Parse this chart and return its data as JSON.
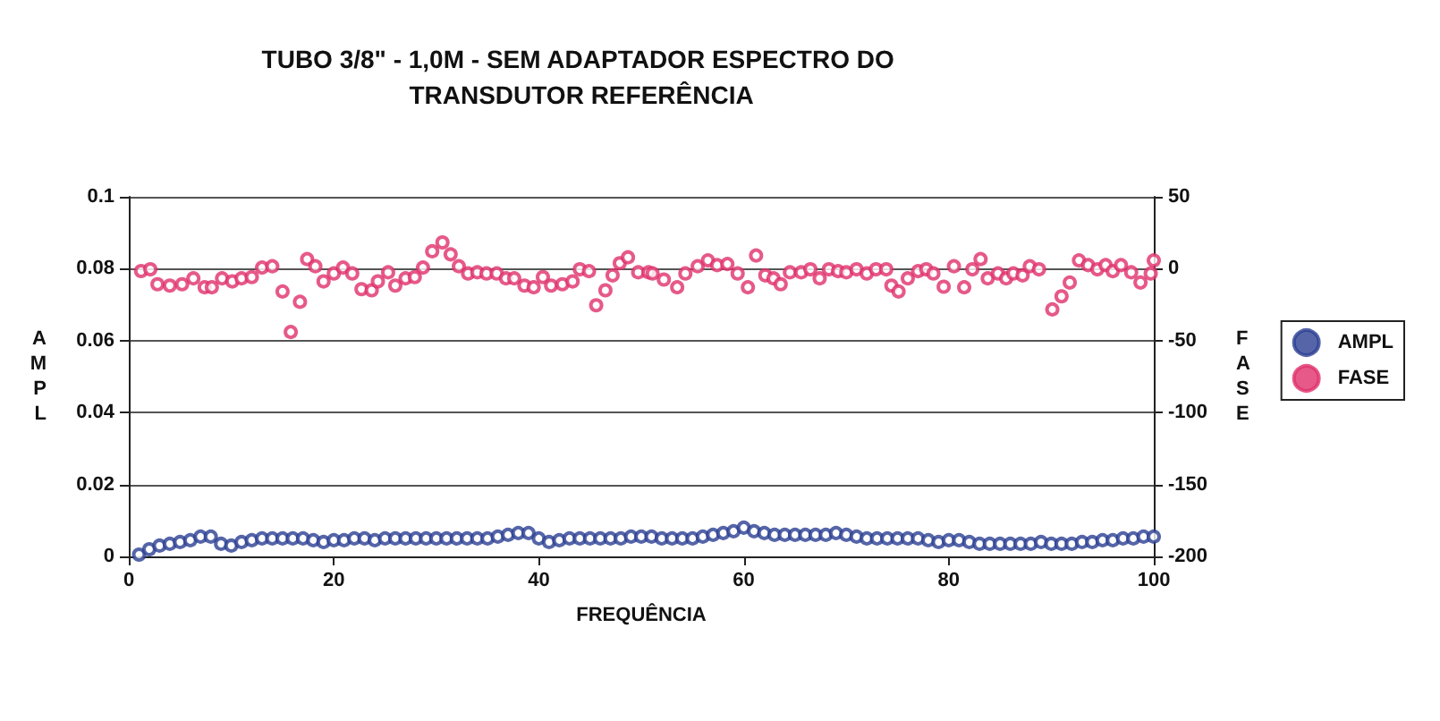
{
  "chart_data": {
    "type": "scatter",
    "title": "TUBO 3/8\" - 1,0M - SEM ADAPTADOR ESPECTRO DO TRANSDUTOR REFERÊNCIA",
    "xlabel": "FREQUÊNCIA",
    "ylabel": "AMPL",
    "y2label": "FASE",
    "xlim": [
      0,
      100
    ],
    "xticks": [
      0,
      20,
      40,
      60,
      80,
      100
    ],
    "ylim": [
      0,
      0.1
    ],
    "yticks": [
      0,
      0.02,
      0.04,
      0.06,
      0.08,
      0.1
    ],
    "y2lim": [
      -200,
      50
    ],
    "y2ticks": [
      -200,
      -150,
      -100,
      -50,
      0,
      50
    ],
    "grid": "y",
    "legend": "right",
    "marker": "circle",
    "series": [
      {
        "name": "AMPL",
        "color": "#2b3f92",
        "x": [
          1,
          2,
          3,
          4,
          5,
          6,
          7,
          8,
          9,
          10,
          11,
          12,
          13,
          14,
          15,
          16,
          17,
          18,
          19,
          20,
          21,
          22,
          23,
          24,
          25,
          26,
          27,
          28,
          29,
          30,
          31,
          32,
          33,
          34,
          35,
          36,
          37,
          38,
          39,
          40,
          41,
          42,
          43,
          44,
          45,
          46,
          47,
          48,
          49,
          50,
          51,
          52,
          53,
          54,
          55,
          56,
          57,
          58,
          59,
          60,
          61,
          62,
          63,
          64,
          65,
          66,
          67,
          68,
          69,
          70,
          71,
          72,
          73,
          74,
          75,
          76,
          77,
          78,
          79,
          80,
          81,
          82,
          83,
          84,
          85,
          86,
          87,
          88,
          89,
          90,
          91,
          92,
          93,
          94,
          95,
          96,
          97,
          98,
          99,
          100
        ],
        "values": [
          0.0005,
          0.002,
          0.003,
          0.0035,
          0.004,
          0.0045,
          0.0055,
          0.0055,
          0.0035,
          0.003,
          0.004,
          0.0045,
          0.005,
          0.005,
          0.005,
          0.005,
          0.005,
          0.0045,
          0.004,
          0.0045,
          0.0045,
          0.005,
          0.005,
          0.0045,
          0.005,
          0.005,
          0.005,
          0.005,
          0.005,
          0.005,
          0.005,
          0.005,
          0.005,
          0.005,
          0.005,
          0.0055,
          0.006,
          0.0065,
          0.0065,
          0.005,
          0.004,
          0.0045,
          0.005,
          0.005,
          0.005,
          0.005,
          0.005,
          0.005,
          0.0055,
          0.0055,
          0.0055,
          0.005,
          0.005,
          0.005,
          0.005,
          0.0055,
          0.006,
          0.0065,
          0.007,
          0.008,
          0.007,
          0.0065,
          0.006,
          0.006,
          0.006,
          0.006,
          0.006,
          0.006,
          0.0065,
          0.006,
          0.0055,
          0.005,
          0.005,
          0.005,
          0.005,
          0.005,
          0.005,
          0.0045,
          0.004,
          0.0045,
          0.0045,
          0.004,
          0.0035,
          0.0035,
          0.0035,
          0.0035,
          0.0035,
          0.0035,
          0.004,
          0.0035,
          0.0035,
          0.0035,
          0.004,
          0.004,
          0.0045,
          0.0045,
          0.005,
          0.005,
          0.0055,
          0.0055
        ]
      },
      {
        "name": "FASE",
        "color": "#e0306c",
        "axis": "y2",
        "x": [
          1.2,
          2.1,
          2.8,
          4.0,
          5.2,
          6.3,
          7.4,
          8.1,
          9.1,
          10.1,
          11.0,
          12.0,
          13.0,
          14.0,
          15.0,
          15.8,
          16.7,
          17.4,
          18.2,
          19.0,
          20.0,
          20.9,
          21.8,
          22.7,
          23.7,
          24.3,
          25.3,
          26.0,
          27.0,
          27.9,
          28.7,
          29.6,
          30.6,
          31.4,
          32.2,
          33.1,
          34.0,
          34.9,
          35.9,
          36.8,
          37.6,
          38.6,
          39.5,
          40.4,
          41.2,
          42.3,
          43.3,
          44.0,
          44.9,
          45.6,
          46.5,
          47.2,
          47.9,
          48.7,
          49.7,
          50.7,
          51.1,
          52.2,
          53.5,
          54.3,
          55.5,
          56.5,
          57.4,
          58.4,
          59.4,
          60.4,
          61.2,
          62.1,
          62.9,
          63.6,
          64.5,
          65.6,
          66.5,
          67.4,
          68.3,
          69.2,
          70.0,
          71.0,
          72.0,
          72.9,
          73.9,
          74.4,
          75.1,
          76.0,
          77.0,
          77.8,
          78.5,
          79.5,
          80.5,
          81.5,
          82.3,
          83.1,
          83.8,
          84.8,
          85.6,
          86.3,
          87.2,
          87.9,
          88.8,
          90.1,
          91.0,
          91.8,
          92.7,
          93.6,
          94.5,
          95.3,
          96.0,
          96.8,
          97.8,
          98.7,
          99.7,
          100
        ],
        "values": [
          -1.6,
          -0.4,
          -10.8,
          -11.7,
          -10.8,
          -6.7,
          -12.9,
          -12.9,
          -6.7,
          -8.8,
          -6.7,
          -5.8,
          0.8,
          1.7,
          -15.8,
          -44,
          -23,
          6.7,
          1.7,
          -8.8,
          -3.3,
          0.8,
          -3.3,
          -14.2,
          -15,
          -8.8,
          -2.5,
          -11.7,
          -6.7,
          -5.8,
          0.8,
          12.1,
          18.3,
          10,
          1.7,
          -3.3,
          -2.5,
          -3.3,
          -3.3,
          -6.7,
          -6.7,
          -11.7,
          -12.9,
          -5.8,
          -11.7,
          -10.8,
          -8.8,
          -0.4,
          -1.7,
          -25.4,
          -15,
          -4.6,
          3.8,
          7.9,
          -2.5,
          -2.5,
          -3.3,
          -7.5,
          -12.9,
          -3.3,
          1.7,
          5.8,
          2.5,
          3.3,
          -3.3,
          -12.9,
          9.2,
          -4.6,
          -6.7,
          -10.8,
          -2.5,
          -2.5,
          -0.4,
          -6.7,
          -0.4,
          -1.7,
          -2.5,
          -0.4,
          -3.3,
          -0.4,
          -0.4,
          -11.7,
          -15.8,
          -6.7,
          -1.7,
          -0.4,
          -3.3,
          -12.5,
          1.7,
          -12.9,
          -0.4,
          6.7,
          -6.7,
          -3.3,
          -6.7,
          -3.3,
          -4.6,
          1.7,
          -0.4,
          -28.3,
          -19.2,
          -9.6,
          5.8,
          2.5,
          -0.4,
          2.5,
          -1.7,
          2.5,
          -2.5,
          -9.6,
          -3.3,
          5.8
        ]
      }
    ]
  }
}
